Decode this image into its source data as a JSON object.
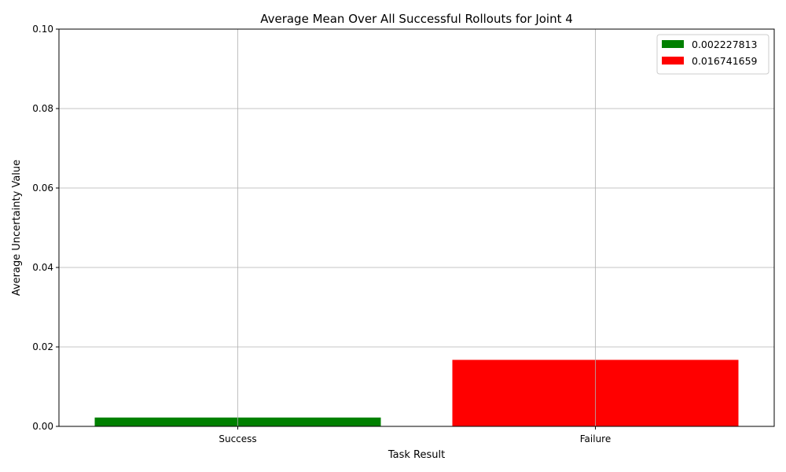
{
  "chart_data": {
    "type": "bar",
    "title": "Average Mean Over All Successful Rollouts for Joint 4",
    "xlabel": "Task Result",
    "ylabel": "Average Uncertainty Value",
    "categories": [
      "Success",
      "Failure"
    ],
    "series": [
      {
        "name": "0.002227813",
        "category": "Success",
        "value": 0.002227813,
        "color": "#008000"
      },
      {
        "name": "0.016741659",
        "category": "Failure",
        "value": 0.016741659,
        "color": "#ff0000"
      }
    ],
    "ylim": [
      0,
      0.1
    ],
    "yticks": [
      "0.00",
      "0.02",
      "0.04",
      "0.06",
      "0.08",
      "0.10"
    ],
    "ytick_values": [
      0,
      0.02,
      0.04,
      0.06,
      0.08,
      0.1
    ],
    "grid": true,
    "legend_position": "top-right"
  }
}
